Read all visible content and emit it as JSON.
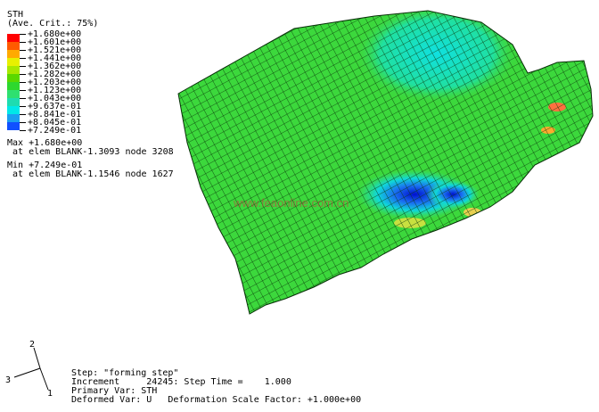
{
  "legend": {
    "variable": "STH",
    "averaging": "(Ave. Crit.: 75%)",
    "values": [
      "+1.680e+00",
      "+1.601e+00",
      "+1.521e+00",
      "+1.441e+00",
      "+1.362e+00",
      "+1.282e+00",
      "+1.203e+00",
      "+1.123e+00",
      "+1.043e+00",
      "+9.637e-01",
      "+8.841e-01",
      "+8.045e-01",
      "+7.249e-01"
    ],
    "colors": [
      "#ff0000",
      "#ff5a00",
      "#ffaa00",
      "#e8f000",
      "#a8e800",
      "#5ad800",
      "#2ed82e",
      "#2ee070",
      "#1edcb0",
      "#00e8e8",
      "#1aa0f0",
      "#1050ff",
      "#0000d0"
    ],
    "max_line": "Max +1.680e+00",
    "max_loc": " at elem BLANK-1.3093 node 3208",
    "min_line": "Min +7.249e-01",
    "min_loc": " at elem BLANK-1.1546 node 1627"
  },
  "triad": {
    "axis_x": "1",
    "axis_y": "2",
    "axis_z": "3"
  },
  "info": {
    "step": "Step: \"forming step\"",
    "increment": "Increment     24245: Step Time =    1.000",
    "primary_var": "Primary Var: STH",
    "deformed_var": "Deformed Var: U   Deformation Scale Factor: +1.000e+00"
  },
  "watermark": "www.feaonline.com.cn"
}
